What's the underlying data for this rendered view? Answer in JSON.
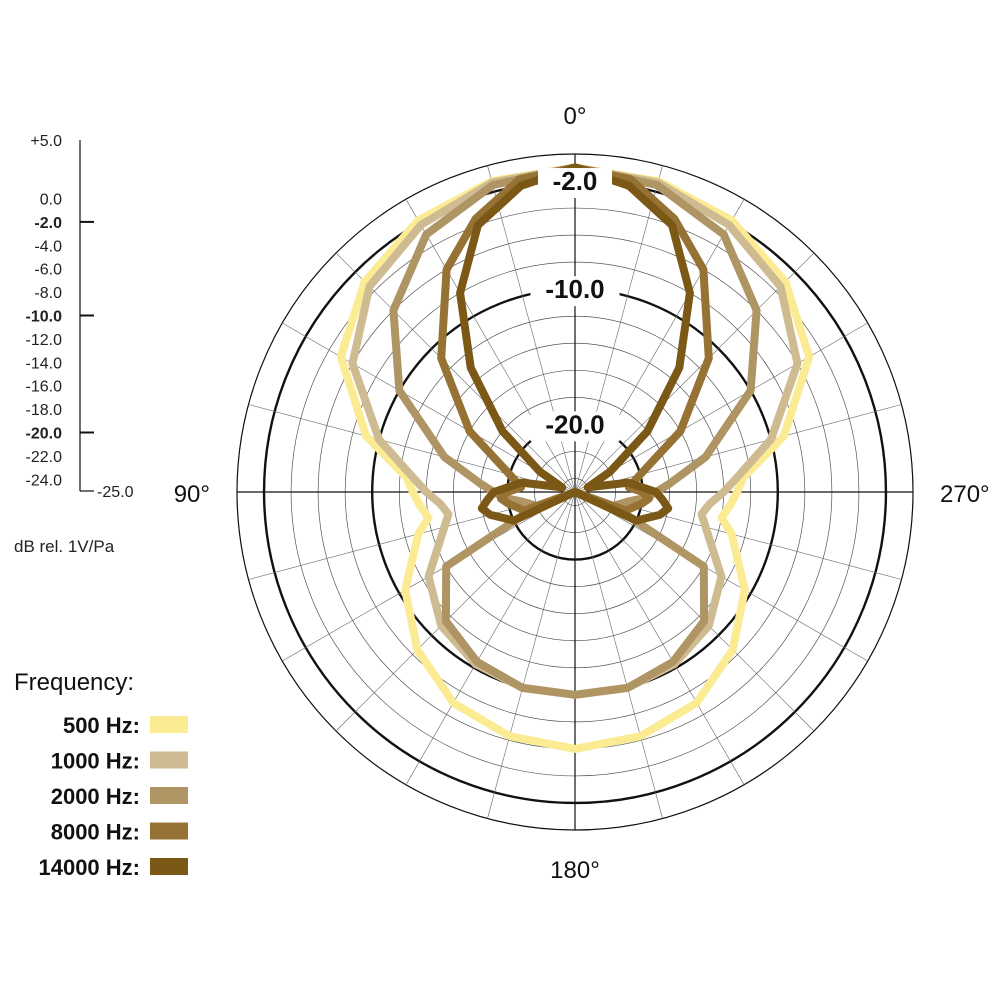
{
  "chart_data": {
    "type": "polar-line",
    "title": "",
    "angle_labels": [
      {
        "text": "0°",
        "angle": 0
      },
      {
        "text": "90°",
        "angle": 90
      },
      {
        "text": "180°",
        "angle": 180
      },
      {
        "text": "270°",
        "angle": 270
      }
    ],
    "angle_direction": "counterclockwise-from-top",
    "radial_range_db": [
      -25,
      0
    ],
    "radial_step_db": 2,
    "bold_rings_db": [
      -2,
      -10,
      -20
    ],
    "ring_labels": [
      "-2.0",
      "-10.0",
      "-20.0"
    ],
    "spoke_step_deg": 15,
    "scale": {
      "unit_label": "dB rel. 1V/Pa",
      "ticks": [
        {
          "label": "+5.0",
          "value": 5,
          "major": false
        },
        {
          "label": "0.0",
          "value": 0,
          "major": false
        },
        {
          "label": "-2.0",
          "value": -2,
          "major": true
        },
        {
          "label": "-4.0",
          "value": -4,
          "major": false
        },
        {
          "label": "-6.0",
          "value": -6,
          "major": false
        },
        {
          "label": "-8.0",
          "value": -8,
          "major": false
        },
        {
          "label": "-10.0",
          "value": -10,
          "major": true
        },
        {
          "label": "-12.0",
          "value": -12,
          "major": false
        },
        {
          "label": "-14.0",
          "value": -14,
          "major": false
        },
        {
          "label": "-16.0",
          "value": -16,
          "major": false
        },
        {
          "label": "-18.0",
          "value": -18,
          "major": false
        },
        {
          "label": "-20.0",
          "value": -20,
          "major": true
        },
        {
          "label": "-22.0",
          "value": -22,
          "major": false
        },
        {
          "label": "-24.0",
          "value": -24,
          "major": false
        },
        {
          "label": "-25.0",
          "value": -25,
          "major": false
        }
      ]
    },
    "legend": {
      "title": "Frequency:",
      "placement": "bottom-left"
    },
    "series": [
      {
        "name": "500 Hz:",
        "color": "#fbeb93",
        "points": [
          [
            0,
            -1
          ],
          [
            15,
            -1.2
          ],
          [
            30,
            -1.8
          ],
          [
            45,
            -3
          ],
          [
            60,
            -5
          ],
          [
            75,
            -9
          ],
          [
            80,
            -11
          ],
          [
            85,
            -12.5
          ],
          [
            90,
            -13
          ],
          [
            95,
            -13.5
          ],
          [
            100,
            -14
          ],
          [
            105,
            -13
          ],
          [
            120,
            -10.5
          ],
          [
            135,
            -8.5
          ],
          [
            150,
            -7
          ],
          [
            165,
            -6.3
          ],
          [
            180,
            -6
          ]
        ]
      },
      {
        "name": "1000 Hz:",
        "color": "#cfbb91",
        "points": [
          [
            0,
            -1
          ],
          [
            15,
            -1.3
          ],
          [
            30,
            -2.2
          ],
          [
            45,
            -3.5
          ],
          [
            60,
            -6
          ],
          [
            75,
            -10
          ],
          [
            85,
            -13
          ],
          [
            90,
            -14
          ],
          [
            95,
            -15
          ],
          [
            100,
            -15.5
          ],
          [
            105,
            -15
          ],
          [
            120,
            -12.5
          ],
          [
            135,
            -11
          ],
          [
            150,
            -10.3
          ],
          [
            165,
            -10
          ],
          [
            180,
            -10
          ]
        ]
      },
      {
        "name": "2000 Hz:",
        "color": "#b09564",
        "points": [
          [
            0,
            -1
          ],
          [
            15,
            -1.5
          ],
          [
            30,
            -3
          ],
          [
            45,
            -6
          ],
          [
            60,
            -10
          ],
          [
            75,
            -15
          ],
          [
            85,
            -18
          ],
          [
            90,
            -19
          ],
          [
            95,
            -19.8
          ],
          [
            100,
            -21
          ],
          [
            110,
            -22
          ],
          [
            120,
            -14
          ],
          [
            135,
            -11.5
          ],
          [
            150,
            -10.5
          ],
          [
            165,
            -10
          ],
          [
            180,
            -10
          ]
        ]
      },
      {
        "name": "8000 Hz:",
        "color": "#967334",
        "points": [
          [
            0,
            -1
          ],
          [
            10,
            -1.5
          ],
          [
            20,
            -3.5
          ],
          [
            30,
            -6
          ],
          [
            45,
            -11
          ],
          [
            60,
            -16
          ],
          [
            75,
            -20
          ],
          [
            85,
            -21
          ],
          [
            90,
            -20
          ],
          [
            95,
            -19.5
          ],
          [
            100,
            -20
          ],
          [
            110,
            -21
          ],
          [
            125,
            -25
          ],
          [
            180,
            -25
          ]
        ]
      },
      {
        "name": "14000 Hz:",
        "color": "#7b5816",
        "points": [
          [
            0,
            -1
          ],
          [
            10,
            -2
          ],
          [
            20,
            -4
          ],
          [
            30,
            -8
          ],
          [
            40,
            -13
          ],
          [
            50,
            -18
          ],
          [
            60,
            -22
          ],
          [
            70,
            -24
          ],
          [
            80,
            -21
          ],
          [
            90,
            -19
          ],
          [
            95,
            -18.5
          ],
          [
            100,
            -18
          ],
          [
            105,
            -18.5
          ],
          [
            115,
            -20
          ],
          [
            125,
            -25
          ],
          [
            180,
            -25
          ]
        ]
      }
    ]
  }
}
